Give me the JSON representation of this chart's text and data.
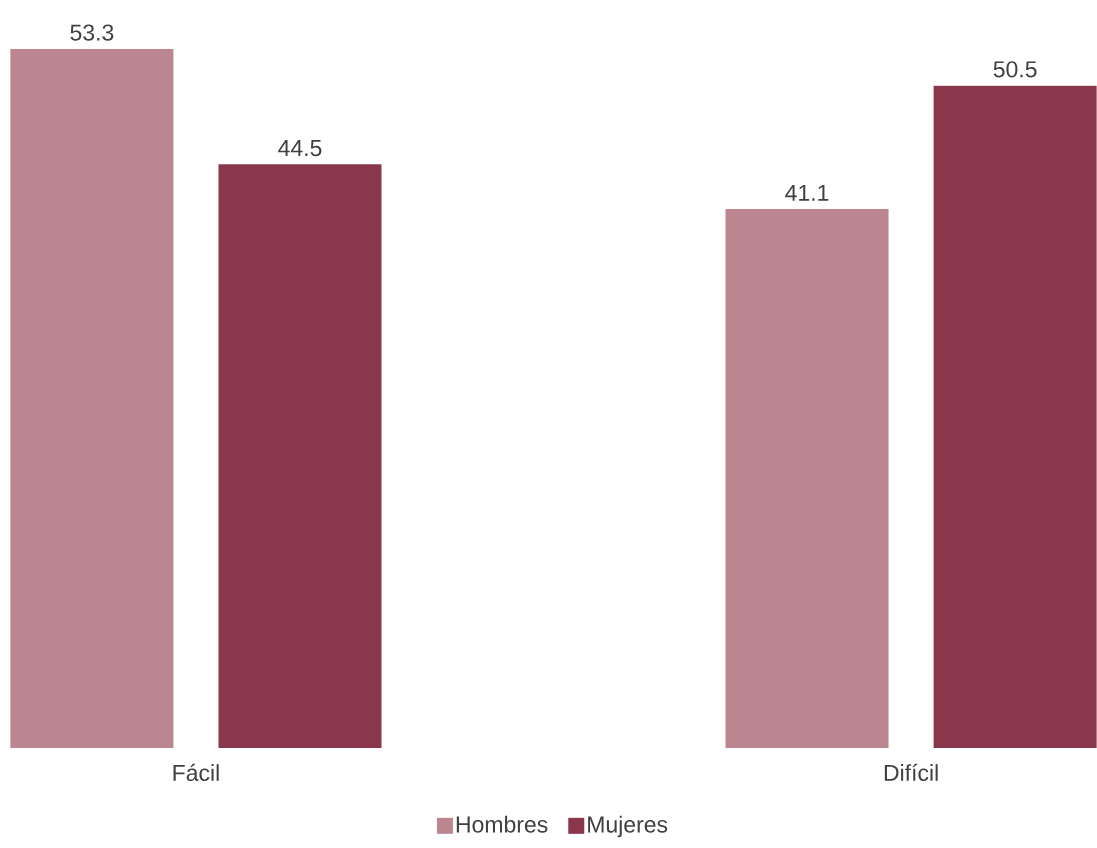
{
  "chart_data": {
    "type": "bar",
    "categories": [
      "Fácil",
      "Difícil"
    ],
    "series": [
      {
        "name": "Hombres",
        "color": "#bc8690",
        "values": [
          53.3,
          41.1
        ]
      },
      {
        "name": "Mujeres",
        "color": "#8b374b",
        "values": [
          44.5,
          50.5
        ]
      }
    ],
    "data_labels": true,
    "legend": "bottom"
  }
}
